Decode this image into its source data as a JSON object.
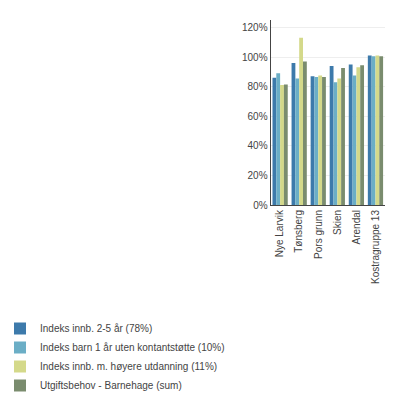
{
  "chart_data": {
    "type": "bar",
    "categories": [
      "Nye Larvik",
      "Tønsberg",
      "Pors grunn",
      "Skien",
      "Arendal",
      "Kostragruppe 13"
    ],
    "series": [
      {
        "name": "Indeks innb. 2-5 år (78%)",
        "color": "#3d7aab",
        "values": [
          0.86,
          0.96,
          0.87,
          0.94,
          0.95,
          1.01
        ]
      },
      {
        "name": "Indeks barn 1 år uten kontantstøtte (10%)",
        "color": "#6baec6",
        "values": [
          0.89,
          0.855,
          0.865,
          0.83,
          0.875,
          1.005
        ]
      },
      {
        "name": "Indeks innb. m. høyere utdanning (11%)",
        "color": "#d4d98a",
        "values": [
          0.81,
          1.13,
          0.875,
          0.855,
          0.93,
          1.01
        ]
      },
      {
        "name": "Utgiftsbehov - Barnehage (sum)",
        "color": "#7a8c6e",
        "values": [
          0.815,
          0.97,
          0.865,
          0.925,
          0.945,
          1.005
        ]
      }
    ],
    "ylim": [
      0,
      1.25
    ],
    "yticks": [
      {
        "value": 0,
        "label": "0%"
      },
      {
        "value": 0.2,
        "label": "20%"
      },
      {
        "value": 0.4,
        "label": "40%"
      },
      {
        "value": 0.6,
        "label": "60%"
      },
      {
        "value": 0.8,
        "label": "80%"
      },
      {
        "value": 1.0,
        "label": "100%"
      },
      {
        "value": 1.2,
        "label": "120%"
      }
    ],
    "grid": true,
    "legend": "lower left"
  }
}
